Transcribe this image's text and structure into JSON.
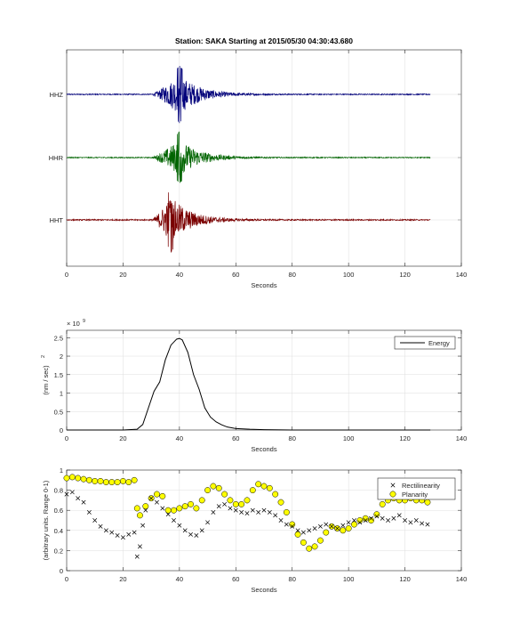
{
  "chart_data": [
    {
      "type": "line",
      "title": "Station: SAKA      Starting at 2015/05/30 04:30:43.680",
      "xlabel": "Seconds",
      "xlim": [
        0,
        140
      ],
      "xticks": [
        0,
        20,
        40,
        60,
        80,
        100,
        120,
        140
      ],
      "grid": true,
      "series": [
        {
          "name": "HHZ",
          "color": "#00007a",
          "onset_s": 30,
          "peak_s": 40,
          "end_s": 129,
          "amp_rel": 1.0
        },
        {
          "name": "HHR",
          "color": "#006400",
          "onset_s": 30,
          "peak_s": 40,
          "end_s": 129,
          "amp_rel": 0.9
        },
        {
          "name": "HHT",
          "color": "#7a0000",
          "onset_s": 30,
          "peak_s": 37,
          "end_s": 129,
          "amp_rel": 1.0
        }
      ]
    },
    {
      "type": "line",
      "xlabel": "Seconds",
      "ylabel": "(nm / sec)",
      "ylabel_exponent": "2",
      "y_multiplier": "× 10",
      "y_multiplier_exponent": "9",
      "xlim": [
        0,
        140
      ],
      "ylim": [
        0,
        2.7
      ],
      "xticks": [
        0,
        20,
        40,
        60,
        80,
        100,
        120,
        140
      ],
      "yticks": [
        0,
        0.5,
        1,
        1.5,
        2,
        2.5
      ],
      "ytick_labels": [
        "0",
        "0.5",
        "1",
        "1.5",
        "2",
        "2.5"
      ],
      "legend": "top-right",
      "grid": true,
      "series": [
        {
          "name": "Energy",
          "color": "#000000",
          "x": [
            0,
            20,
            25,
            27,
            29,
            31,
            33,
            35,
            37,
            39,
            40,
            41,
            43,
            45,
            47,
            49,
            51,
            53,
            55,
            57,
            60,
            65,
            70,
            80,
            90,
            100,
            110,
            120,
            129
          ],
          "y": [
            0,
            0,
            0.02,
            0.15,
            0.6,
            1.05,
            1.3,
            1.9,
            2.3,
            2.46,
            2.48,
            2.44,
            2.1,
            1.5,
            1.1,
            0.6,
            0.35,
            0.22,
            0.14,
            0.08,
            0.04,
            0.02,
            0.01,
            0,
            0,
            0,
            0,
            0,
            0
          ]
        }
      ]
    },
    {
      "type": "scatter",
      "xlabel": "Seconds",
      "ylabel": "(arbitrary units. Range 0-1)",
      "xlim": [
        0,
        140
      ],
      "ylim": [
        0,
        1
      ],
      "xticks": [
        0,
        20,
        40,
        60,
        80,
        100,
        120,
        140
      ],
      "yticks": [
        0,
        0.2,
        0.4,
        0.6,
        0.8,
        1
      ],
      "ytick_labels": [
        "0",
        "0.2",
        "0.4",
        "0.6",
        "0.8",
        "1"
      ],
      "legend": "top-right",
      "grid": true,
      "series": [
        {
          "name": "Rectilinearity",
          "marker": "x",
          "color": "#000000",
          "x": [
            0,
            2,
            4,
            6,
            8,
            10,
            12,
            14,
            16,
            18,
            20,
            22,
            24,
            25,
            26,
            27,
            28,
            30,
            32,
            34,
            36,
            38,
            40,
            42,
            44,
            46,
            48,
            50,
            52,
            54,
            56,
            58,
            60,
            62,
            64,
            66,
            68,
            70,
            72,
            74,
            76,
            78,
            80,
            82,
            84,
            86,
            88,
            90,
            92,
            94,
            96,
            98,
            100,
            102,
            104,
            106,
            108,
            110,
            112,
            114,
            116,
            118,
            120,
            122,
            124,
            126,
            128
          ],
          "y": [
            0.76,
            0.78,
            0.72,
            0.68,
            0.58,
            0.5,
            0.44,
            0.4,
            0.38,
            0.35,
            0.33,
            0.36,
            0.38,
            0.14,
            0.24,
            0.45,
            0.6,
            0.72,
            0.68,
            0.62,
            0.56,
            0.5,
            0.45,
            0.4,
            0.36,
            0.35,
            0.4,
            0.48,
            0.58,
            0.64,
            0.66,
            0.62,
            0.6,
            0.58,
            0.57,
            0.6,
            0.58,
            0.6,
            0.58,
            0.55,
            0.5,
            0.46,
            0.44,
            0.4,
            0.38,
            0.4,
            0.42,
            0.44,
            0.46,
            0.44,
            0.42,
            0.45,
            0.48,
            0.5,
            0.48,
            0.5,
            0.52,
            0.54,
            0.52,
            0.5,
            0.52,
            0.55,
            0.5,
            0.48,
            0.5,
            0.47,
            0.46
          ]
        },
        {
          "name": "Planarity",
          "marker": "o",
          "color": "#ffff00",
          "x": [
            0,
            2,
            4,
            6,
            8,
            10,
            12,
            14,
            16,
            18,
            20,
            22,
            24,
            25,
            26,
            28,
            30,
            32,
            34,
            36,
            38,
            40,
            42,
            44,
            46,
            48,
            50,
            52,
            54,
            56,
            58,
            60,
            62,
            64,
            66,
            68,
            70,
            72,
            74,
            76,
            78,
            80,
            82,
            84,
            86,
            88,
            90,
            92,
            94,
            96,
            98,
            100,
            102,
            104,
            106,
            108,
            110,
            112,
            114,
            116,
            118,
            120,
            122,
            124,
            126,
            128
          ],
          "y": [
            0.92,
            0.93,
            0.92,
            0.91,
            0.9,
            0.89,
            0.89,
            0.88,
            0.88,
            0.88,
            0.89,
            0.88,
            0.9,
            0.62,
            0.55,
            0.64,
            0.72,
            0.76,
            0.74,
            0.6,
            0.6,
            0.62,
            0.64,
            0.66,
            0.62,
            0.7,
            0.8,
            0.84,
            0.82,
            0.76,
            0.7,
            0.66,
            0.66,
            0.7,
            0.8,
            0.86,
            0.84,
            0.82,
            0.76,
            0.68,
            0.58,
            0.46,
            0.36,
            0.28,
            0.22,
            0.24,
            0.3,
            0.38,
            0.44,
            0.42,
            0.4,
            0.42,
            0.46,
            0.5,
            0.52,
            0.5,
            0.56,
            0.66,
            0.7,
            0.72,
            0.7,
            0.7,
            0.72,
            0.7,
            0.7,
            0.68
          ]
        }
      ]
    }
  ]
}
